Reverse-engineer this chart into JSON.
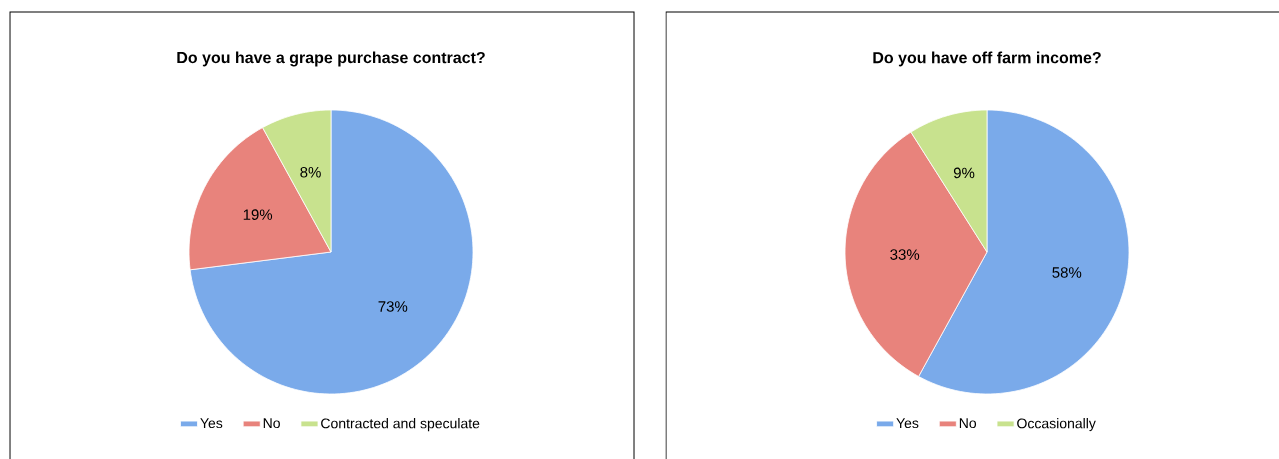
{
  "chart_data": [
    {
      "type": "pie",
      "title": "Do you have a grape purchase contract?",
      "categories": [
        "Yes",
        "No",
        "Contracted and speculate"
      ],
      "values": [
        73,
        19,
        8
      ],
      "colors": [
        "#7aaaea",
        "#e8837c",
        "#c8e28e"
      ],
      "value_labels": [
        "73%",
        "19%",
        "8%"
      ],
      "legend": "bottom"
    },
    {
      "type": "pie",
      "title": "Do you have off farm income?",
      "categories": [
        "Yes",
        "No",
        "Occasionally"
      ],
      "values": [
        58,
        33,
        9
      ],
      "colors": [
        "#7aaaea",
        "#e8837c",
        "#c8e28e"
      ],
      "value_labels": [
        "58%",
        "33%",
        "9%"
      ],
      "legend": "bottom"
    }
  ]
}
